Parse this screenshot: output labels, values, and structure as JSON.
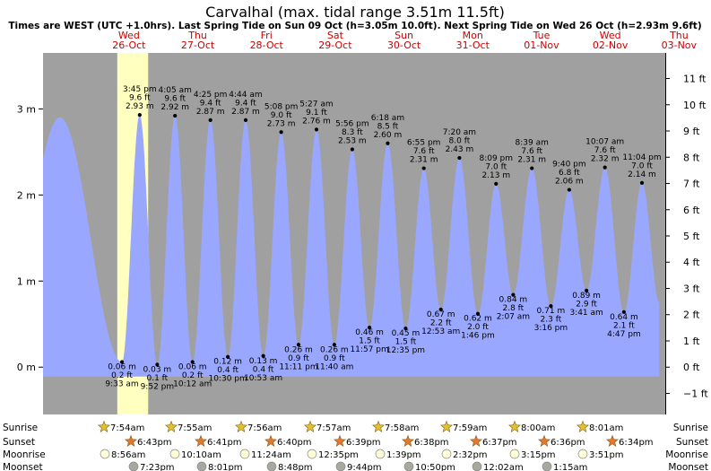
{
  "chart_data": {
    "type": "line",
    "title": "Carvalhal (max. tidal range 3.51m 11.5ft)",
    "subtitle": "Times are WEST (UTC +1.0hrs). Last Spring Tide on Sun 09 Oct (h=3.05m 10.0ft). Next Spring Tide on Wed 26 Oct (h=2.93m 9.6ft)",
    "x_unit": "days since Wed 26-Oct 00:00",
    "xlim": [
      -0.75,
      8.3
    ],
    "ylim_m": [
      -0.55,
      3.65
    ],
    "ylim_ft": [
      -1.804,
      11.975
    ],
    "y_ticks_m": [
      "0 m",
      "1 m",
      "2 m",
      "3 m"
    ],
    "y_ticks_ft": [
      "−1 ft",
      "0 ft",
      "1 ft",
      "2 ft",
      "3 ft",
      "4 ft",
      "5 ft",
      "6 ft",
      "7 ft",
      "8 ft",
      "9 ft",
      "10 ft",
      "11 ft"
    ],
    "days": [
      {
        "day": "Wed",
        "date": "26-Oct"
      },
      {
        "day": "Thu",
        "date": "27-Oct"
      },
      {
        "day": "Fri",
        "date": "28-Oct"
      },
      {
        "day": "Sat",
        "date": "29-Oct"
      },
      {
        "day": "Sun",
        "date": "30-Oct"
      },
      {
        "day": "Mon",
        "date": "31-Oct"
      },
      {
        "day": "Tue",
        "date": "01-Nov"
      },
      {
        "day": "Wed",
        "date": "02-Nov"
      },
      {
        "day": "Thu",
        "date": "03-Nov"
      }
    ],
    "daylight": [
      [
        0.33,
        0.779
      ],
      [
        1.33,
        0.779
      ],
      [
        2.331,
        0.778
      ],
      [
        3.331,
        0.777
      ],
      [
        4.332,
        0.776
      ],
      [
        5.333,
        0.776
      ],
      [
        6.333,
        0.775
      ],
      [
        7.334,
        0.774
      ]
    ],
    "tides": [
      {
        "t": -0.505,
        "h": 2.9,
        "type": "high"
      },
      {
        "t": 0.398,
        "h": 0.06,
        "type": "low",
        "time": "9:33 am",
        "ft": "0.2 ft"
      },
      {
        "t": 0.656,
        "h": 2.93,
        "type": "high",
        "time": "3:45 pm",
        "ft": "9.6 ft"
      },
      {
        "t": 0.911,
        "h": 0.03,
        "type": "low",
        "time": "9:52 pm",
        "ft": "0.1 ft"
      },
      {
        "t": 1.17,
        "h": 2.92,
        "type": "high",
        "time": "4:05 am",
        "ft": "9.6 ft"
      },
      {
        "t": 1.424,
        "h": 0.06,
        "type": "low",
        "time": "10:12 am",
        "ft": "0.2 ft"
      },
      {
        "t": 1.684,
        "h": 2.87,
        "type": "high",
        "time": "4:25 pm",
        "ft": "9.4 ft"
      },
      {
        "t": 1.938,
        "h": 0.12,
        "type": "low",
        "time": "10:30 pm",
        "ft": "0.4 ft"
      },
      {
        "t": 2.197,
        "h": 2.87,
        "type": "high",
        "time": "4:44 am",
        "ft": "9.4 ft"
      },
      {
        "t": 2.453,
        "h": 0.13,
        "type": "low",
        "time": "10:53 am",
        "ft": "0.4 ft"
      },
      {
        "t": 2.714,
        "h": 2.73,
        "type": "high",
        "time": "5:08 pm",
        "ft": "9.0 ft"
      },
      {
        "t": 2.966,
        "h": 0.26,
        "type": "low",
        "time": "11:11 pm",
        "ft": "0.9 ft"
      },
      {
        "t": 3.227,
        "h": 2.76,
        "type": "high",
        "time": "5:27 am",
        "ft": "9.1 ft"
      },
      {
        "t": 3.486,
        "h": 0.26,
        "type": "low",
        "time": "11:40 am",
        "ft": "0.9 ft"
      },
      {
        "t": 3.747,
        "h": 2.53,
        "type": "high",
        "time": "5:56 pm",
        "ft": "8.3 ft"
      },
      {
        "t": 3.998,
        "h": 0.46,
        "type": "low",
        "time": "11:57 pm",
        "ft": "1.5 ft"
      },
      {
        "t": 4.263,
        "h": 2.6,
        "type": "high",
        "time": "6:18 am",
        "ft": "8.5 ft"
      },
      {
        "t": 4.524,
        "h": 0.45,
        "type": "low",
        "time": "12:35 pm",
        "ft": "1.5 ft"
      },
      {
        "t": 4.788,
        "h": 2.31,
        "type": "high",
        "time": "6:55 pm",
        "ft": "7.6 ft"
      },
      {
        "t": 5.036,
        "h": 0.67,
        "type": "low",
        "time": "12:53 am",
        "ft": "2.2 ft"
      },
      {
        "t": 5.306,
        "h": 2.43,
        "type": "high",
        "time": "7:20 am",
        "ft": "8.0 ft"
      },
      {
        "t": 5.574,
        "h": 0.62,
        "type": "low",
        "time": "1:46 pm",
        "ft": "2.0 ft"
      },
      {
        "t": 5.839,
        "h": 2.13,
        "type": "high",
        "time": "8:09 pm",
        "ft": "7.0 ft"
      },
      {
        "t": 6.088,
        "h": 0.84,
        "type": "low",
        "time": "2:07 am",
        "ft": "2.8 ft"
      },
      {
        "t": 6.36,
        "h": 2.31,
        "type": "high",
        "time": "8:39 am",
        "ft": "7.6 ft"
      },
      {
        "t": 6.636,
        "h": 0.71,
        "type": "low",
        "time": "3:16 pm",
        "ft": "2.3 ft"
      },
      {
        "t": 6.903,
        "h": 2.06,
        "type": "high",
        "time": "9:40 pm",
        "ft": "6.8 ft"
      },
      {
        "t": 7.154,
        "h": 0.89,
        "type": "low",
        "time": "3:41 am",
        "ft": "2.9 ft"
      },
      {
        "t": 7.422,
        "h": 2.32,
        "type": "high",
        "time": "10:07 am",
        "ft": "7.6 ft"
      },
      {
        "t": 7.699,
        "h": 0.64,
        "type": "low",
        "time": "4:47 pm",
        "ft": "2.1 ft"
      },
      {
        "t": 7.961,
        "h": 2.14,
        "type": "high",
        "time": "11:04 pm",
        "ft": "7.0 ft"
      },
      {
        "t": 8.215,
        "h": 0.75,
        "type": "low"
      }
    ],
    "sun_moon": {
      "labels": [
        "Sunrise",
        "Sunset",
        "Moonrise",
        "Moonset"
      ],
      "sunrise": [
        "7:54am",
        "7:55am",
        "7:56am",
        "7:57am",
        "7:58am",
        "7:59am",
        "8:00am",
        "8:01am"
      ],
      "sunset": [
        "6:43pm",
        "6:41pm",
        "6:40pm",
        "6:39pm",
        "6:38pm",
        "6:37pm",
        "6:36pm",
        "6:34pm"
      ],
      "moonrise": [
        "8:56am",
        "10:10am",
        "11:24am",
        "12:35pm",
        "1:39pm",
        "2:32pm",
        "3:15pm",
        "3:51pm"
      ],
      "moonset": [
        "7:23pm",
        "8:01pm",
        "8:48pm",
        "9:44pm",
        "10:50pm",
        "12:02am",
        "1:15am"
      ]
    },
    "colors": {
      "night": "#a0a0a0",
      "day": "#ffffc0",
      "tide": "#9aa7ff",
      "title": "#000000",
      "day_label": "#cc0000",
      "star_rise": "#e2c030",
      "star_set": "#e07830",
      "moon_rise": "#ffffd8",
      "moon_set": "#a8a8a0"
    },
    "grid": true,
    "legend": "none"
  }
}
